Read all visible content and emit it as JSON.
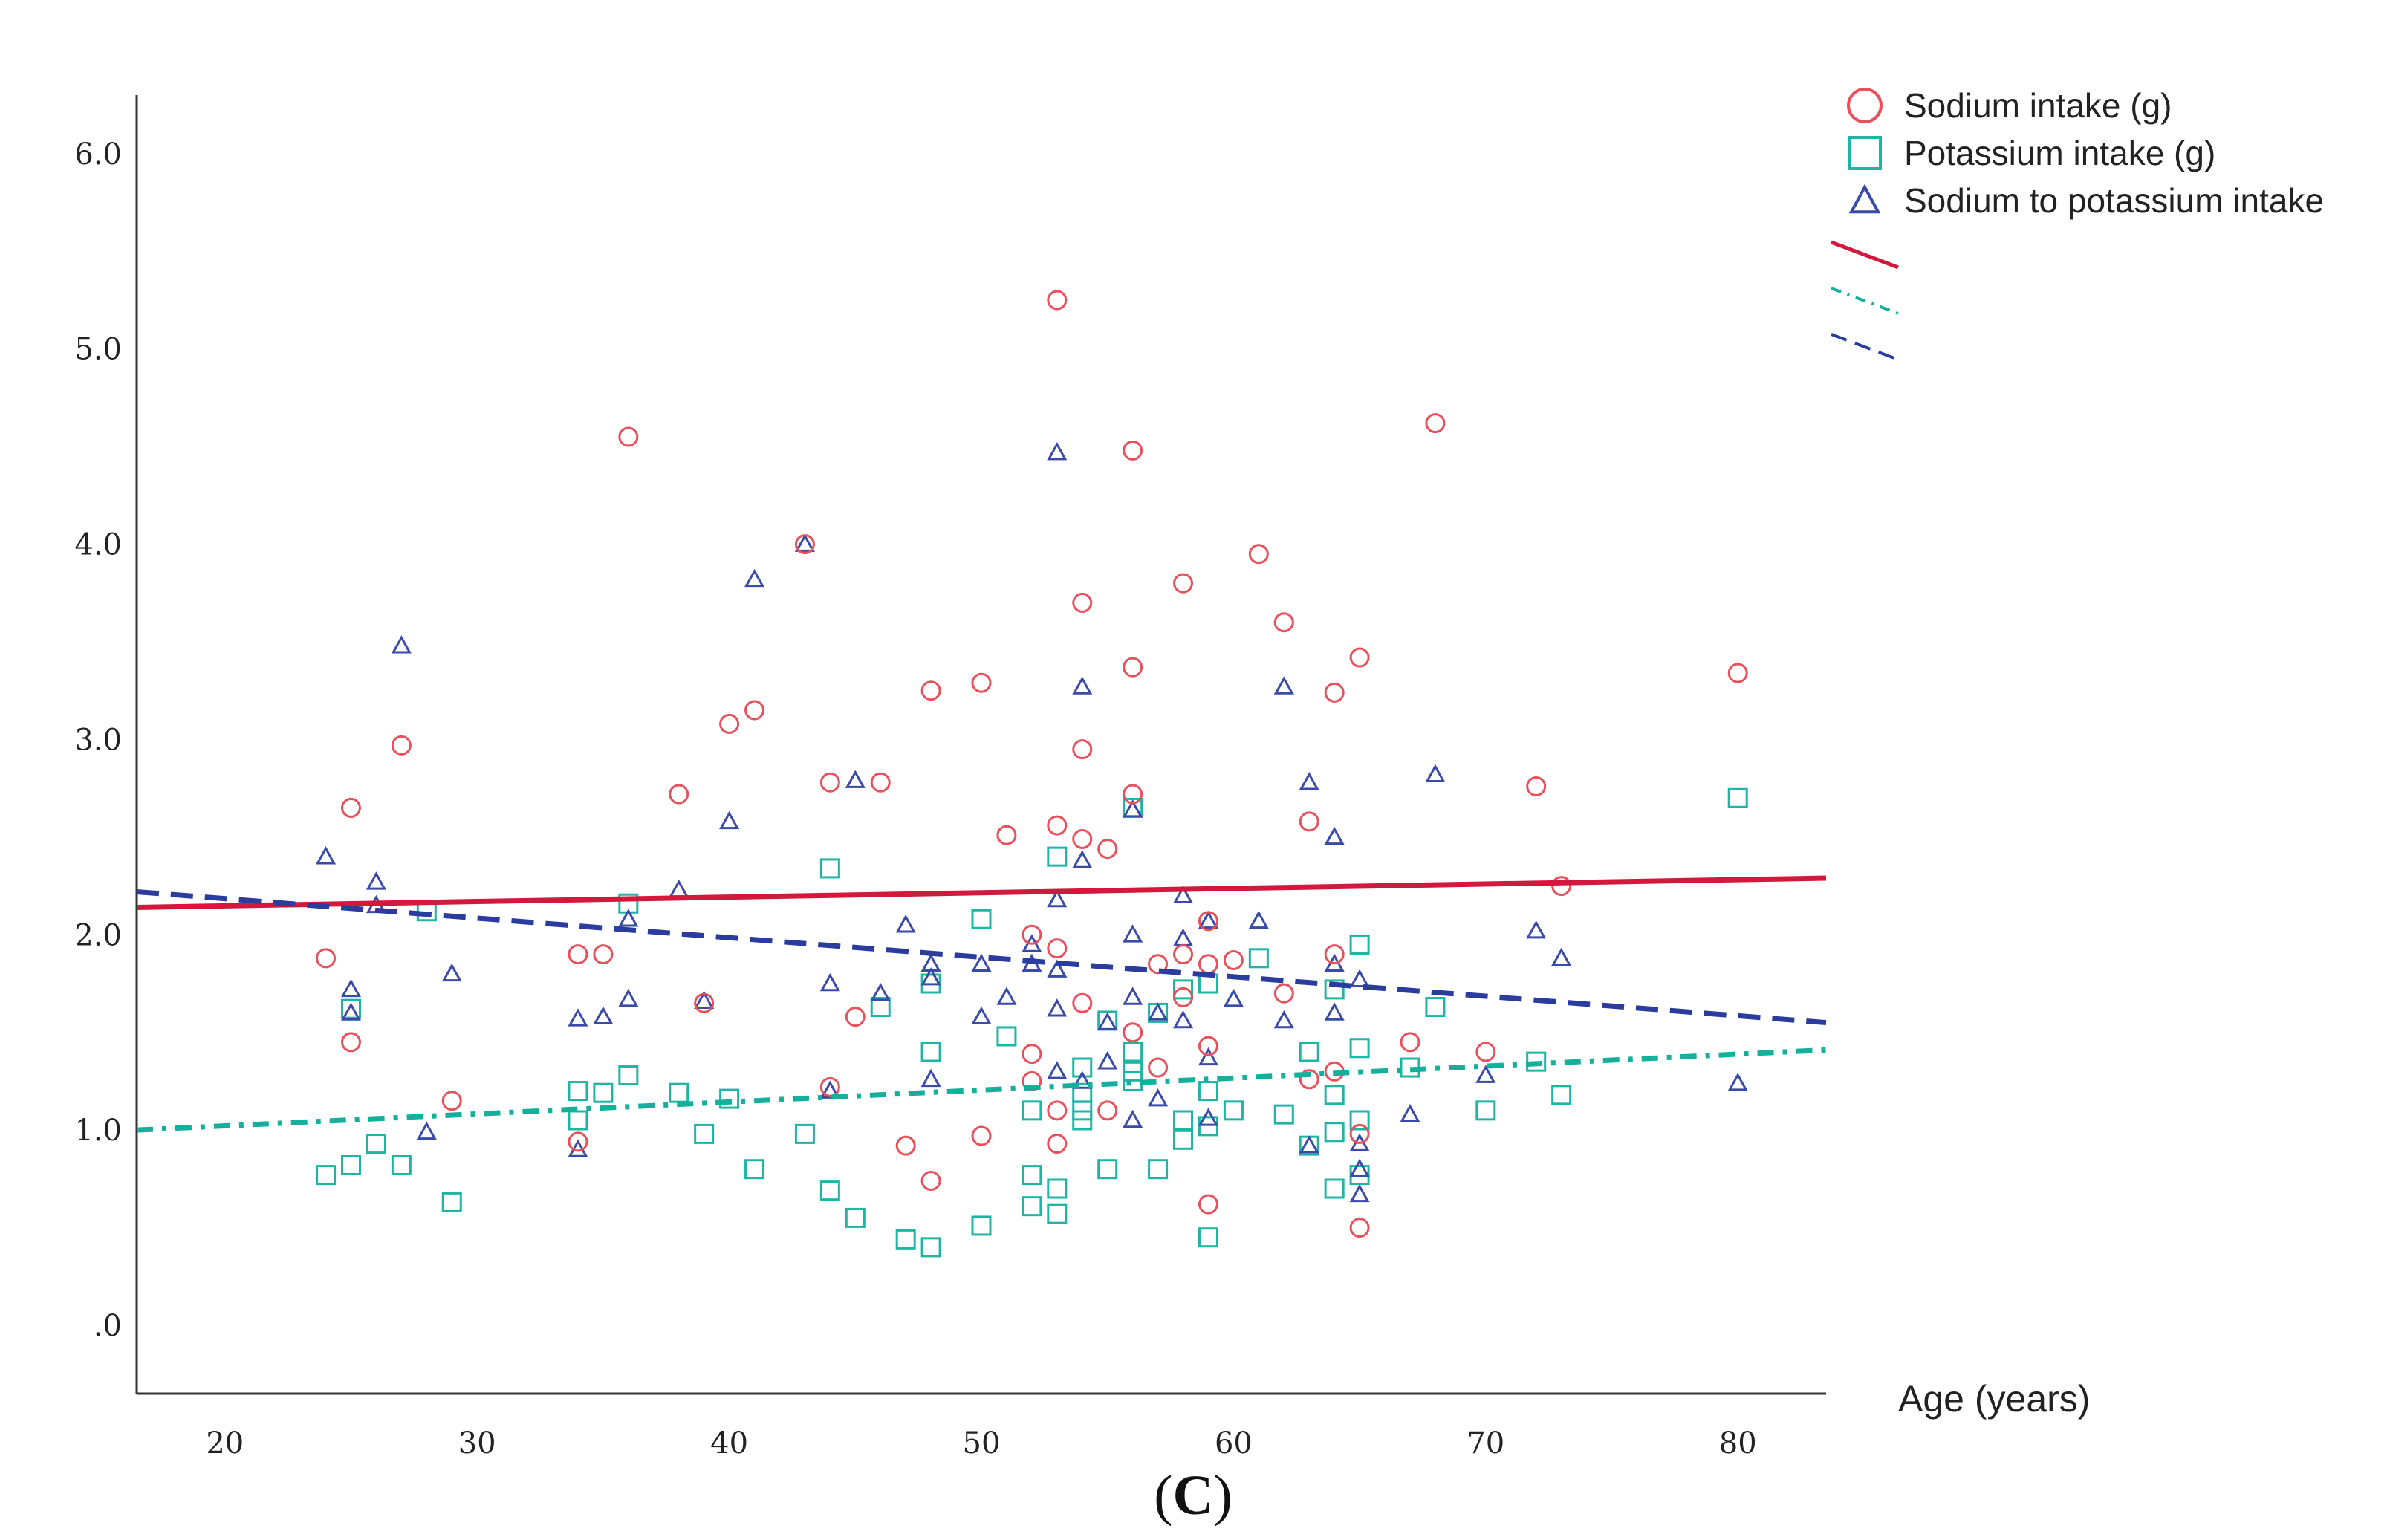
{
  "chart_data": {
    "type": "scatter",
    "panel_label": {
      "open": "(",
      "letter": "C",
      "close": ")"
    },
    "xlabel": "Age (years)",
    "ylabel": "",
    "xlim": [
      16.5,
      83.5
    ],
    "ylim": [
      -0.35,
      6.3
    ],
    "x_ticks": [
      20,
      30,
      40,
      50,
      60,
      70,
      80
    ],
    "x_tick_labels": [
      "20",
      "30",
      "40",
      "50",
      "60",
      "70",
      "80"
    ],
    "y_ticks": [
      0,
      1,
      2,
      3,
      4,
      5,
      6
    ],
    "y_tick_labels": [
      ".0",
      "1.0",
      "2.0",
      "3.0",
      "4.0",
      "5.0",
      "6.0"
    ],
    "grid": false,
    "legend_position": "top-right",
    "colors": {
      "sodium": "#e8505b",
      "potassium": "#1fb5a5",
      "ratio": "#3a4aa8",
      "sodium_fit": "#d2183c",
      "potassium_fit": "#14b09c",
      "ratio_fit": "#2a3c9e"
    },
    "series": [
      {
        "name": "Sodium intake (g)",
        "marker": "circle",
        "color": "#e8505b",
        "points": [
          [
            24,
            1.88
          ],
          [
            25,
            2.65
          ],
          [
            25,
            1.45
          ],
          [
            27,
            2.97
          ],
          [
            29,
            1.15
          ],
          [
            34,
            1.9
          ],
          [
            34,
            0.94
          ],
          [
            35,
            1.9
          ],
          [
            36,
            4.55
          ],
          [
            38,
            2.72
          ],
          [
            39,
            1.65
          ],
          [
            40,
            3.08
          ],
          [
            41,
            3.15
          ],
          [
            43,
            4.0
          ],
          [
            44,
            2.78
          ],
          [
            44,
            1.22
          ],
          [
            45,
            1.58
          ],
          [
            46,
            2.78
          ],
          [
            47,
            0.92
          ],
          [
            48,
            3.25
          ],
          [
            48,
            0.74
          ],
          [
            50,
            3.29
          ],
          [
            50,
            0.97
          ],
          [
            51,
            2.51
          ],
          [
            52,
            2.0
          ],
          [
            52,
            1.39
          ],
          [
            52,
            1.25
          ],
          [
            53,
            5.25
          ],
          [
            53,
            2.56
          ],
          [
            53,
            1.93
          ],
          [
            53,
            1.1
          ],
          [
            53,
            0.93
          ],
          [
            54,
            3.7
          ],
          [
            54,
            2.95
          ],
          [
            54,
            2.49
          ],
          [
            54,
            1.65
          ],
          [
            55,
            2.44
          ],
          [
            55,
            1.1
          ],
          [
            56,
            4.48
          ],
          [
            56,
            3.37
          ],
          [
            56,
            2.72
          ],
          [
            56,
            1.5
          ],
          [
            57,
            1.85
          ],
          [
            57,
            1.32
          ],
          [
            58,
            3.8
          ],
          [
            58,
            1.9
          ],
          [
            58,
            1.68
          ],
          [
            59,
            2.07
          ],
          [
            59,
            1.85
          ],
          [
            59,
            1.43
          ],
          [
            59,
            0.62
          ],
          [
            60,
            1.87
          ],
          [
            61,
            3.95
          ],
          [
            62,
            3.6
          ],
          [
            62,
            1.7
          ],
          [
            63,
            2.58
          ],
          [
            63,
            1.26
          ],
          [
            64,
            3.24
          ],
          [
            64,
            1.9
          ],
          [
            64,
            1.3
          ],
          [
            65,
            3.42
          ],
          [
            65,
            0.98
          ],
          [
            65,
            0.5
          ],
          [
            67,
            1.45
          ],
          [
            68,
            4.62
          ],
          [
            70,
            1.4
          ],
          [
            72,
            2.76
          ],
          [
            73,
            2.25
          ],
          [
            80,
            3.34
          ]
        ]
      },
      {
        "name": "Potassium intake (g)",
        "marker": "square",
        "color": "#1fb5a5",
        "points": [
          [
            24,
            0.77
          ],
          [
            25,
            0.82
          ],
          [
            25,
            1.62
          ],
          [
            26,
            0.93
          ],
          [
            27,
            0.82
          ],
          [
            28,
            2.12
          ],
          [
            29,
            0.63
          ],
          [
            34,
            1.2
          ],
          [
            34,
            1.05
          ],
          [
            35,
            1.19
          ],
          [
            36,
            2.16
          ],
          [
            36,
            1.28
          ],
          [
            38,
            1.19
          ],
          [
            39,
            0.98
          ],
          [
            40,
            1.16
          ],
          [
            41,
            0.8
          ],
          [
            43,
            0.98
          ],
          [
            44,
            2.34
          ],
          [
            44,
            0.69
          ],
          [
            45,
            0.55
          ],
          [
            46,
            1.63
          ],
          [
            47,
            0.44
          ],
          [
            48,
            1.75
          ],
          [
            48,
            1.4
          ],
          [
            48,
            0.4
          ],
          [
            50,
            2.08
          ],
          [
            50,
            0.51
          ],
          [
            51,
            1.48
          ],
          [
            52,
            1.1
          ],
          [
            52,
            0.77
          ],
          [
            52,
            0.61
          ],
          [
            53,
            2.4
          ],
          [
            53,
            0.7
          ],
          [
            53,
            0.57
          ],
          [
            54,
            1.32
          ],
          [
            54,
            1.19
          ],
          [
            54,
            1.1
          ],
          [
            54,
            1.05
          ],
          [
            55,
            1.56
          ],
          [
            55,
            0.8
          ],
          [
            56,
            2.65
          ],
          [
            56,
            1.4
          ],
          [
            56,
            1.3
          ],
          [
            56,
            1.25
          ],
          [
            57,
            1.6
          ],
          [
            57,
            0.8
          ],
          [
            58,
            1.72
          ],
          [
            58,
            1.05
          ],
          [
            58,
            0.95
          ],
          [
            59,
            1.75
          ],
          [
            59,
            1.2
          ],
          [
            59,
            1.02
          ],
          [
            59,
            0.45
          ],
          [
            60,
            1.1
          ],
          [
            61,
            1.88
          ],
          [
            62,
            1.08
          ],
          [
            63,
            1.4
          ],
          [
            63,
            0.92
          ],
          [
            64,
            1.72
          ],
          [
            64,
            1.18
          ],
          [
            64,
            0.99
          ],
          [
            64,
            0.7
          ],
          [
            65,
            1.95
          ],
          [
            65,
            1.42
          ],
          [
            65,
            1.05
          ],
          [
            65,
            0.77
          ],
          [
            67,
            1.32
          ],
          [
            68,
            1.63
          ],
          [
            70,
            1.1
          ],
          [
            72,
            1.35
          ],
          [
            73,
            1.18
          ],
          [
            80,
            2.7
          ]
        ]
      },
      {
        "name": "Sodium to potassium intake",
        "marker": "triangle",
        "color": "#3a4aa8",
        "points": [
          [
            24,
            2.4
          ],
          [
            25,
            1.72
          ],
          [
            25,
            1.6
          ],
          [
            26,
            2.27
          ],
          [
            26,
            2.15
          ],
          [
            27,
            3.48
          ],
          [
            28,
            0.99
          ],
          [
            29,
            1.8
          ],
          [
            34,
            1.57
          ],
          [
            34,
            0.9
          ],
          [
            35,
            1.58
          ],
          [
            36,
            2.08
          ],
          [
            36,
            1.67
          ],
          [
            38,
            2.23
          ],
          [
            39,
            1.66
          ],
          [
            40,
            2.58
          ],
          [
            41,
            3.82
          ],
          [
            43,
            4.0
          ],
          [
            44,
            1.75
          ],
          [
            44,
            1.2
          ],
          [
            45,
            2.79
          ],
          [
            46,
            1.7
          ],
          [
            47,
            2.05
          ],
          [
            48,
            1.85
          ],
          [
            48,
            1.78
          ],
          [
            48,
            1.26
          ],
          [
            50,
            1.85
          ],
          [
            50,
            1.58
          ],
          [
            51,
            1.68
          ],
          [
            52,
            1.95
          ],
          [
            52,
            1.85
          ],
          [
            53,
            4.47
          ],
          [
            53,
            2.18
          ],
          [
            53,
            1.82
          ],
          [
            53,
            1.62
          ],
          [
            53,
            1.3
          ],
          [
            54,
            3.27
          ],
          [
            54,
            2.38
          ],
          [
            54,
            1.25
          ],
          [
            55,
            1.55
          ],
          [
            55,
            1.35
          ],
          [
            56,
            2.64
          ],
          [
            56,
            2.0
          ],
          [
            56,
            1.68
          ],
          [
            56,
            1.05
          ],
          [
            57,
            1.6
          ],
          [
            57,
            1.16
          ],
          [
            58,
            2.2
          ],
          [
            58,
            1.98
          ],
          [
            58,
            1.56
          ],
          [
            59,
            2.07
          ],
          [
            59,
            1.37
          ],
          [
            59,
            1.06
          ],
          [
            60,
            1.67
          ],
          [
            61,
            2.07
          ],
          [
            62,
            3.27
          ],
          [
            62,
            1.56
          ],
          [
            63,
            2.78
          ],
          [
            63,
            0.92
          ],
          [
            64,
            2.5
          ],
          [
            64,
            1.85
          ],
          [
            64,
            1.6
          ],
          [
            65,
            1.77
          ],
          [
            65,
            0.93
          ],
          [
            65,
            0.8
          ],
          [
            65,
            0.67
          ],
          [
            67,
            1.08
          ],
          [
            68,
            2.82
          ],
          [
            70,
            1.28
          ],
          [
            72,
            2.02
          ],
          [
            73,
            1.88
          ],
          [
            80,
            1.24
          ]
        ]
      }
    ],
    "fit_lines": [
      {
        "series": "Sodium intake (g)",
        "style": "solid",
        "color": "#d2183c",
        "x": [
          16.5,
          83.5
        ],
        "y": [
          2.14,
          2.29
        ]
      },
      {
        "series": "Potassium intake (g)",
        "style": "dash-dot",
        "color": "#14b09c",
        "x": [
          16.5,
          83.5
        ],
        "y": [
          1.0,
          1.41
        ]
      },
      {
        "series": "Sodium to potassium intake",
        "style": "dashed",
        "color": "#2a3c9e",
        "x": [
          16.5,
          83.5
        ],
        "y": [
          2.22,
          1.55
        ]
      }
    ]
  }
}
